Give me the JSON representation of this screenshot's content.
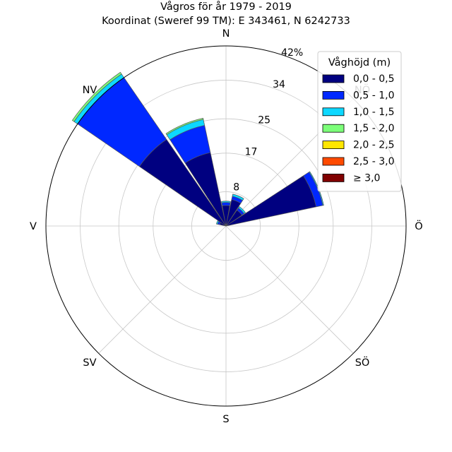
{
  "chart_data": {
    "type": "wind-rose",
    "title_line1": "Vågros för år 1979 - 2019",
    "title_line2": "Koordinat (Sweref 99 TM): E 343461, N 6242733",
    "directions": [
      "N",
      "NÖ",
      "Ö",
      "SÖ",
      "S",
      "SV",
      "V",
      "NV"
    ],
    "radial_ticks": [
      {
        "value": 8,
        "label": "8"
      },
      {
        "value": 17,
        "label": "17"
      },
      {
        "value": 25,
        "label": "25"
      },
      {
        "value": 34,
        "label": "34"
      },
      {
        "value": 42,
        "label": "42%"
      }
    ],
    "rmax": 42,
    "legend_title": "Våghöjd (m)",
    "legend_placement": "top-right",
    "legend": [
      {
        "label": "0,0 - 0,5",
        "color": "#000080"
      },
      {
        "label": "0,5 - 1,0",
        "color": "#0028ff"
      },
      {
        "label": "1,0 - 1,5",
        "color": "#0dd8ff"
      },
      {
        "label": "1,5 - 2,0",
        "color": "#7cff79"
      },
      {
        "label": "2,0 - 2,5",
        "color": "#ffe600"
      },
      {
        "label": "2,5 - 3,0",
        "color": "#ff4a00"
      },
      {
        "label": "≥ 3,0",
        "color": "#800000"
      }
    ],
    "sectors": [
      {
        "direction_deg": 22.5,
        "values": [
          6.3,
          0.8,
          0.5,
          0,
          0,
          0,
          0
        ]
      },
      {
        "direction_deg": 45,
        "values": [
          4.5,
          0.6,
          0.4,
          0,
          0,
          0,
          0
        ]
      },
      {
        "direction_deg": 67.5,
        "values": [
          21.5,
          1.6,
          0.2,
          0,
          0,
          0,
          0
        ]
      },
      {
        "direction_deg": 292.5,
        "values": [
          1.5,
          0.5,
          0.3,
          0,
          0,
          0,
          0
        ]
      },
      {
        "direction_deg": 315,
        "values": [
          24.5,
          17.5,
          1.0,
          0.5,
          0,
          0,
          0
        ]
      },
      {
        "direction_deg": 337.5,
        "values": [
          17.5,
          6.5,
          1.4,
          0.3,
          0,
          0,
          0
        ]
      },
      {
        "direction_deg": 0,
        "values": [
          4.8,
          0.7,
          0.3,
          0,
          0,
          0,
          0
        ]
      }
    ]
  }
}
